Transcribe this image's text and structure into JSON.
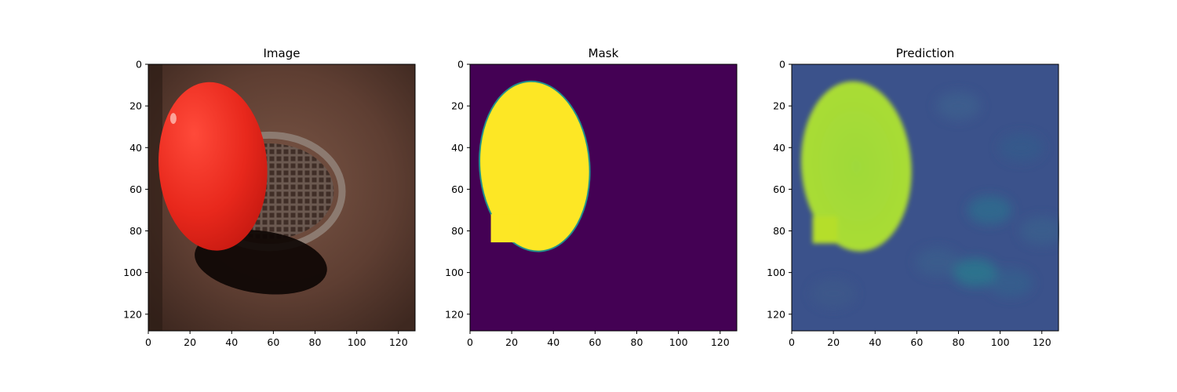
{
  "figure": {
    "panels": [
      {
        "id": "image",
        "title": "Image",
        "kind": "photo",
        "x_ticks": [
          "0",
          "20",
          "40",
          "60",
          "80",
          "100",
          "120"
        ],
        "y_ticks": [
          "0",
          "20",
          "40",
          "60",
          "80",
          "100",
          "120"
        ]
      },
      {
        "id": "mask",
        "title": "Mask",
        "kind": "mask",
        "x_ticks": [
          "0",
          "20",
          "40",
          "60",
          "80",
          "100",
          "120"
        ],
        "y_ticks": [
          "0",
          "20",
          "40",
          "60",
          "80",
          "100",
          "120"
        ]
      },
      {
        "id": "prediction",
        "title": "Prediction",
        "kind": "prediction",
        "x_ticks": [
          "0",
          "20",
          "40",
          "60",
          "80",
          "100",
          "120"
        ],
        "y_ticks": [
          "0",
          "20",
          "40",
          "60",
          "80",
          "100",
          "120"
        ]
      }
    ],
    "image_extent": [
      128,
      128
    ],
    "colors": {
      "ball": "#e8281c",
      "ground": "#6e4a3c",
      "mask_background": "#440154",
      "mask_foreground": "#fde725",
      "prediction_background": "#3b528b",
      "prediction_foreground": "#a0da39"
    }
  }
}
